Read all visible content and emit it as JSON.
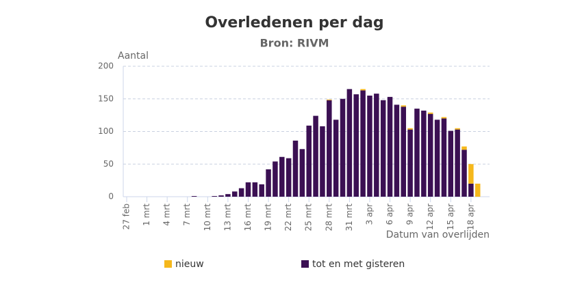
{
  "chart_data": {
    "type": "bar",
    "stacked": true,
    "title": "Overledenen per dag",
    "subtitle": "Bron: RIVM",
    "y_label": "Aantal",
    "x_label": "Datum van overlijden",
    "categories": [
      "27 feb",
      null,
      null,
      "1 mrt",
      null,
      null,
      "4 mrt",
      null,
      null,
      "7 mrt",
      null,
      null,
      "10 mrt",
      null,
      null,
      "13 mrt",
      null,
      null,
      "16 mrt",
      null,
      null,
      "19 mrt",
      null,
      null,
      "22 mrt",
      null,
      null,
      "25 mrt",
      null,
      null,
      "28 mrt",
      null,
      null,
      "31 mrt",
      null,
      null,
      "3 apr",
      null,
      null,
      "6 apr",
      null,
      null,
      "9 apr",
      null,
      null,
      "12 apr",
      null,
      null,
      "15 apr",
      null,
      null,
      "18 apr",
      null
    ],
    "series": [
      {
        "name": "tot en met gisteren",
        "color": "#3b1053",
        "values": [
          0,
          0,
          0,
          0,
          0,
          0,
          0,
          0,
          0,
          0,
          1,
          0,
          0,
          1,
          2,
          4,
          8,
          13,
          22,
          22,
          19,
          42,
          54,
          61,
          59,
          86,
          73,
          109,
          124,
          108,
          148,
          118,
          150,
          165,
          157,
          163,
          155,
          158,
          148,
          153,
          141,
          138,
          103,
          135,
          132,
          127,
          118,
          120,
          101,
          103,
          72,
          20,
          0
        ]
      },
      {
        "name": "nieuw",
        "color": "#f5b81c",
        "values": [
          0,
          0,
          0,
          0,
          0,
          0,
          0,
          0,
          0,
          0,
          0,
          0,
          0,
          0,
          0,
          0,
          0,
          0,
          0,
          0,
          0,
          0,
          0,
          0,
          0,
          0,
          0,
          0,
          0,
          0,
          1,
          0,
          0,
          0,
          0,
          2,
          0,
          0,
          0,
          0,
          0,
          2,
          2,
          0,
          0,
          2,
          0,
          2,
          0,
          2,
          5,
          30,
          20
        ]
      }
    ],
    "legend_order": [
      "nieuw",
      "tot en met gisteren"
    ],
    "ylim": [
      0,
      200
    ],
    "yticks": [
      0,
      50,
      100,
      150,
      200
    ],
    "grid": true
  }
}
